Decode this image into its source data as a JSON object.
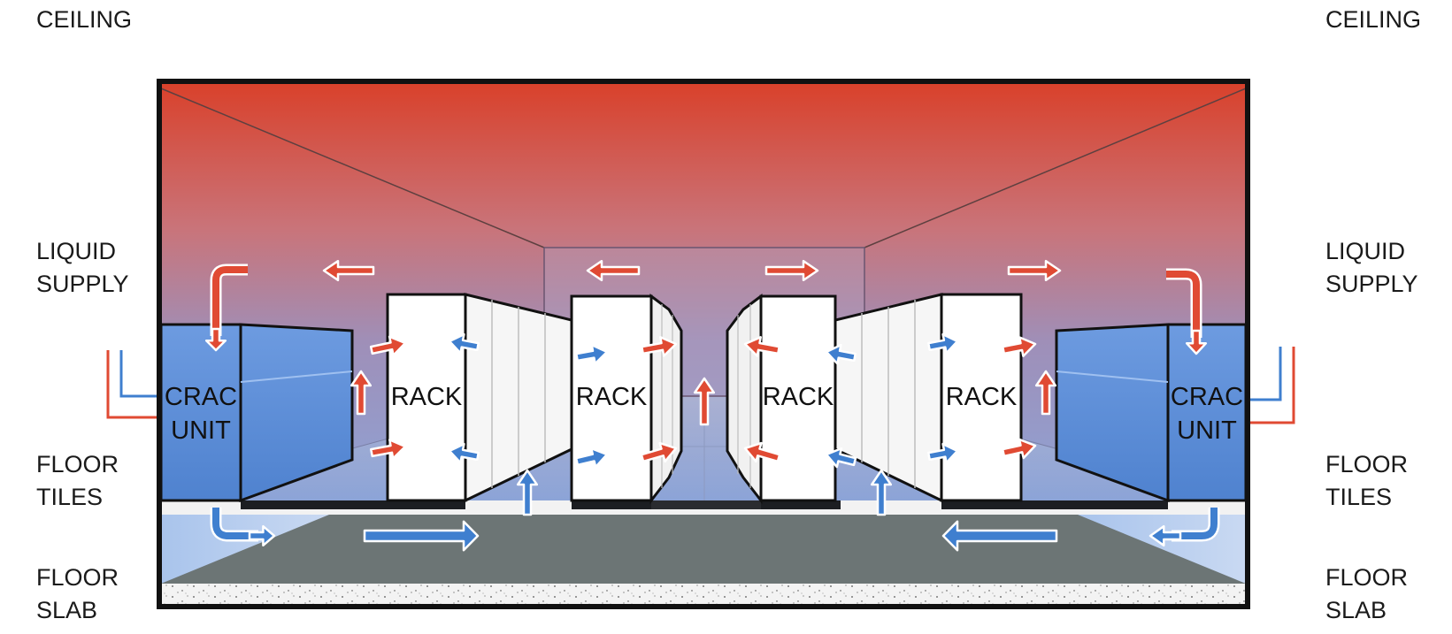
{
  "labels": {
    "left": {
      "ceiling": "CEILING",
      "liquid_supply": [
        "LIQUID",
        "SUPPLY"
      ],
      "floor_tiles": [
        "FLOOR",
        "TILES"
      ],
      "floor_slab": [
        "FLOOR",
        "SLAB"
      ]
    },
    "right": {
      "ceiling": "CEILING",
      "liquid_supply": [
        "LIQUID",
        "SUPPLY"
      ],
      "floor_tiles": [
        "FLOOR",
        "TILES"
      ],
      "floor_slab": [
        "FLOOR",
        "SLAB"
      ]
    }
  },
  "diagram": {
    "racks": [
      "RACK",
      "RACK",
      "RACK",
      "RACK"
    ],
    "crac_left": [
      "CRAC",
      "UNIT"
    ],
    "crac_right": [
      "CRAC",
      "UNIT"
    ]
  },
  "colors": {
    "hot_air": "#e04a33",
    "cold_air": "#3f7fcf",
    "ceiling_top": "#d8402a",
    "crac_fill": "#5b8fd6",
    "plenum": "#6e7676",
    "outline": "#111111"
  }
}
